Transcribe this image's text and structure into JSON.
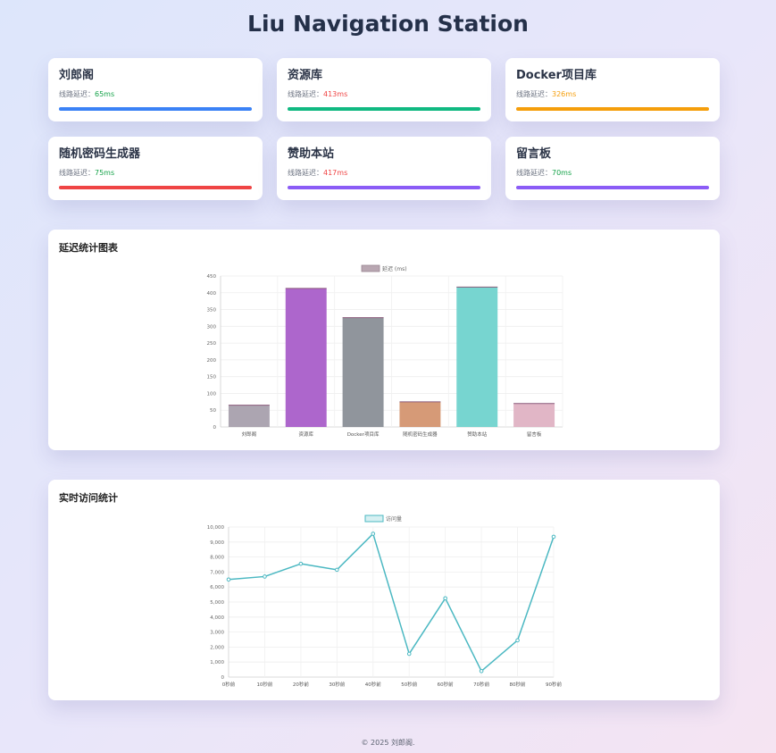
{
  "page": {
    "title": "Liu Navigation Station"
  },
  "cards": [
    {
      "title": "刘郎阁",
      "latency_label": "线路延迟：",
      "latency_value": "65ms",
      "bar_color": "#3b82f6",
      "value_color": "good"
    },
    {
      "title": "资源库",
      "latency_label": "线路延迟：",
      "latency_value": "413ms",
      "bar_color": "#10b981",
      "value_color": "bad"
    },
    {
      "title": "Docker项目库",
      "latency_label": "线路延迟：",
      "latency_value": "326ms",
      "bar_color": "#f59e0b",
      "value_color": "mid"
    },
    {
      "title": "随机密码生成器",
      "latency_label": "线路延迟：",
      "latency_value": "75ms",
      "bar_color": "#ef4444",
      "value_color": "good"
    },
    {
      "title": "赞助本站",
      "latency_label": "线路延迟：",
      "latency_value": "417ms",
      "bar_color": "#8b5cf6",
      "value_color": "bad"
    },
    {
      "title": "留言板",
      "latency_label": "线路延迟：",
      "latency_value": "70ms",
      "bar_color": "#8b5cf6",
      "value_color": "good"
    }
  ],
  "latency_panel": {
    "title": "延迟统计图表"
  },
  "visits_panel": {
    "title": "实时访问统计"
  },
  "footer": {
    "text": "© 2025 刘郎阁."
  },
  "chart_data": [
    {
      "type": "bar",
      "title": "",
      "legend": [
        "延迟 (ms)"
      ],
      "legend_position": "top",
      "categories": [
        "刘郎阁",
        "资源库",
        "Docker项目库",
        "随机密码生成器",
        "赞助本站",
        "留言板"
      ],
      "values": [
        65,
        413,
        326,
        75,
        417,
        70
      ],
      "colors": [
        "#a8a0ad",
        "#a95ec9",
        "#8a8f97",
        "#d49570",
        "#70d3ce",
        "#dfb2c3"
      ],
      "y_ticks": [
        "0",
        "50",
        "100",
        "150",
        "200",
        "250",
        "300",
        "350",
        "400",
        "450"
      ],
      "ylim": [
        0,
        450
      ],
      "grid": true
    },
    {
      "type": "line",
      "title": "",
      "legend": [
        "访问量"
      ],
      "legend_position": "top",
      "categories": [
        "0秒前",
        "10秒前",
        "20秒前",
        "30秒前",
        "40秒前",
        "50秒前",
        "60秒前",
        "70秒前",
        "80秒前",
        "90秒前"
      ],
      "values": [
        6500,
        6700,
        7550,
        7150,
        9550,
        1550,
        5250,
        400,
        2450,
        9350
      ],
      "color": "#4bb8c2",
      "y_ticks": [
        "0",
        "1,000",
        "2,000",
        "3,000",
        "4,000",
        "5,000",
        "6,000",
        "7,000",
        "8,000",
        "9,000",
        "10,000"
      ],
      "ylim": [
        0,
        10000
      ],
      "grid": true
    }
  ]
}
